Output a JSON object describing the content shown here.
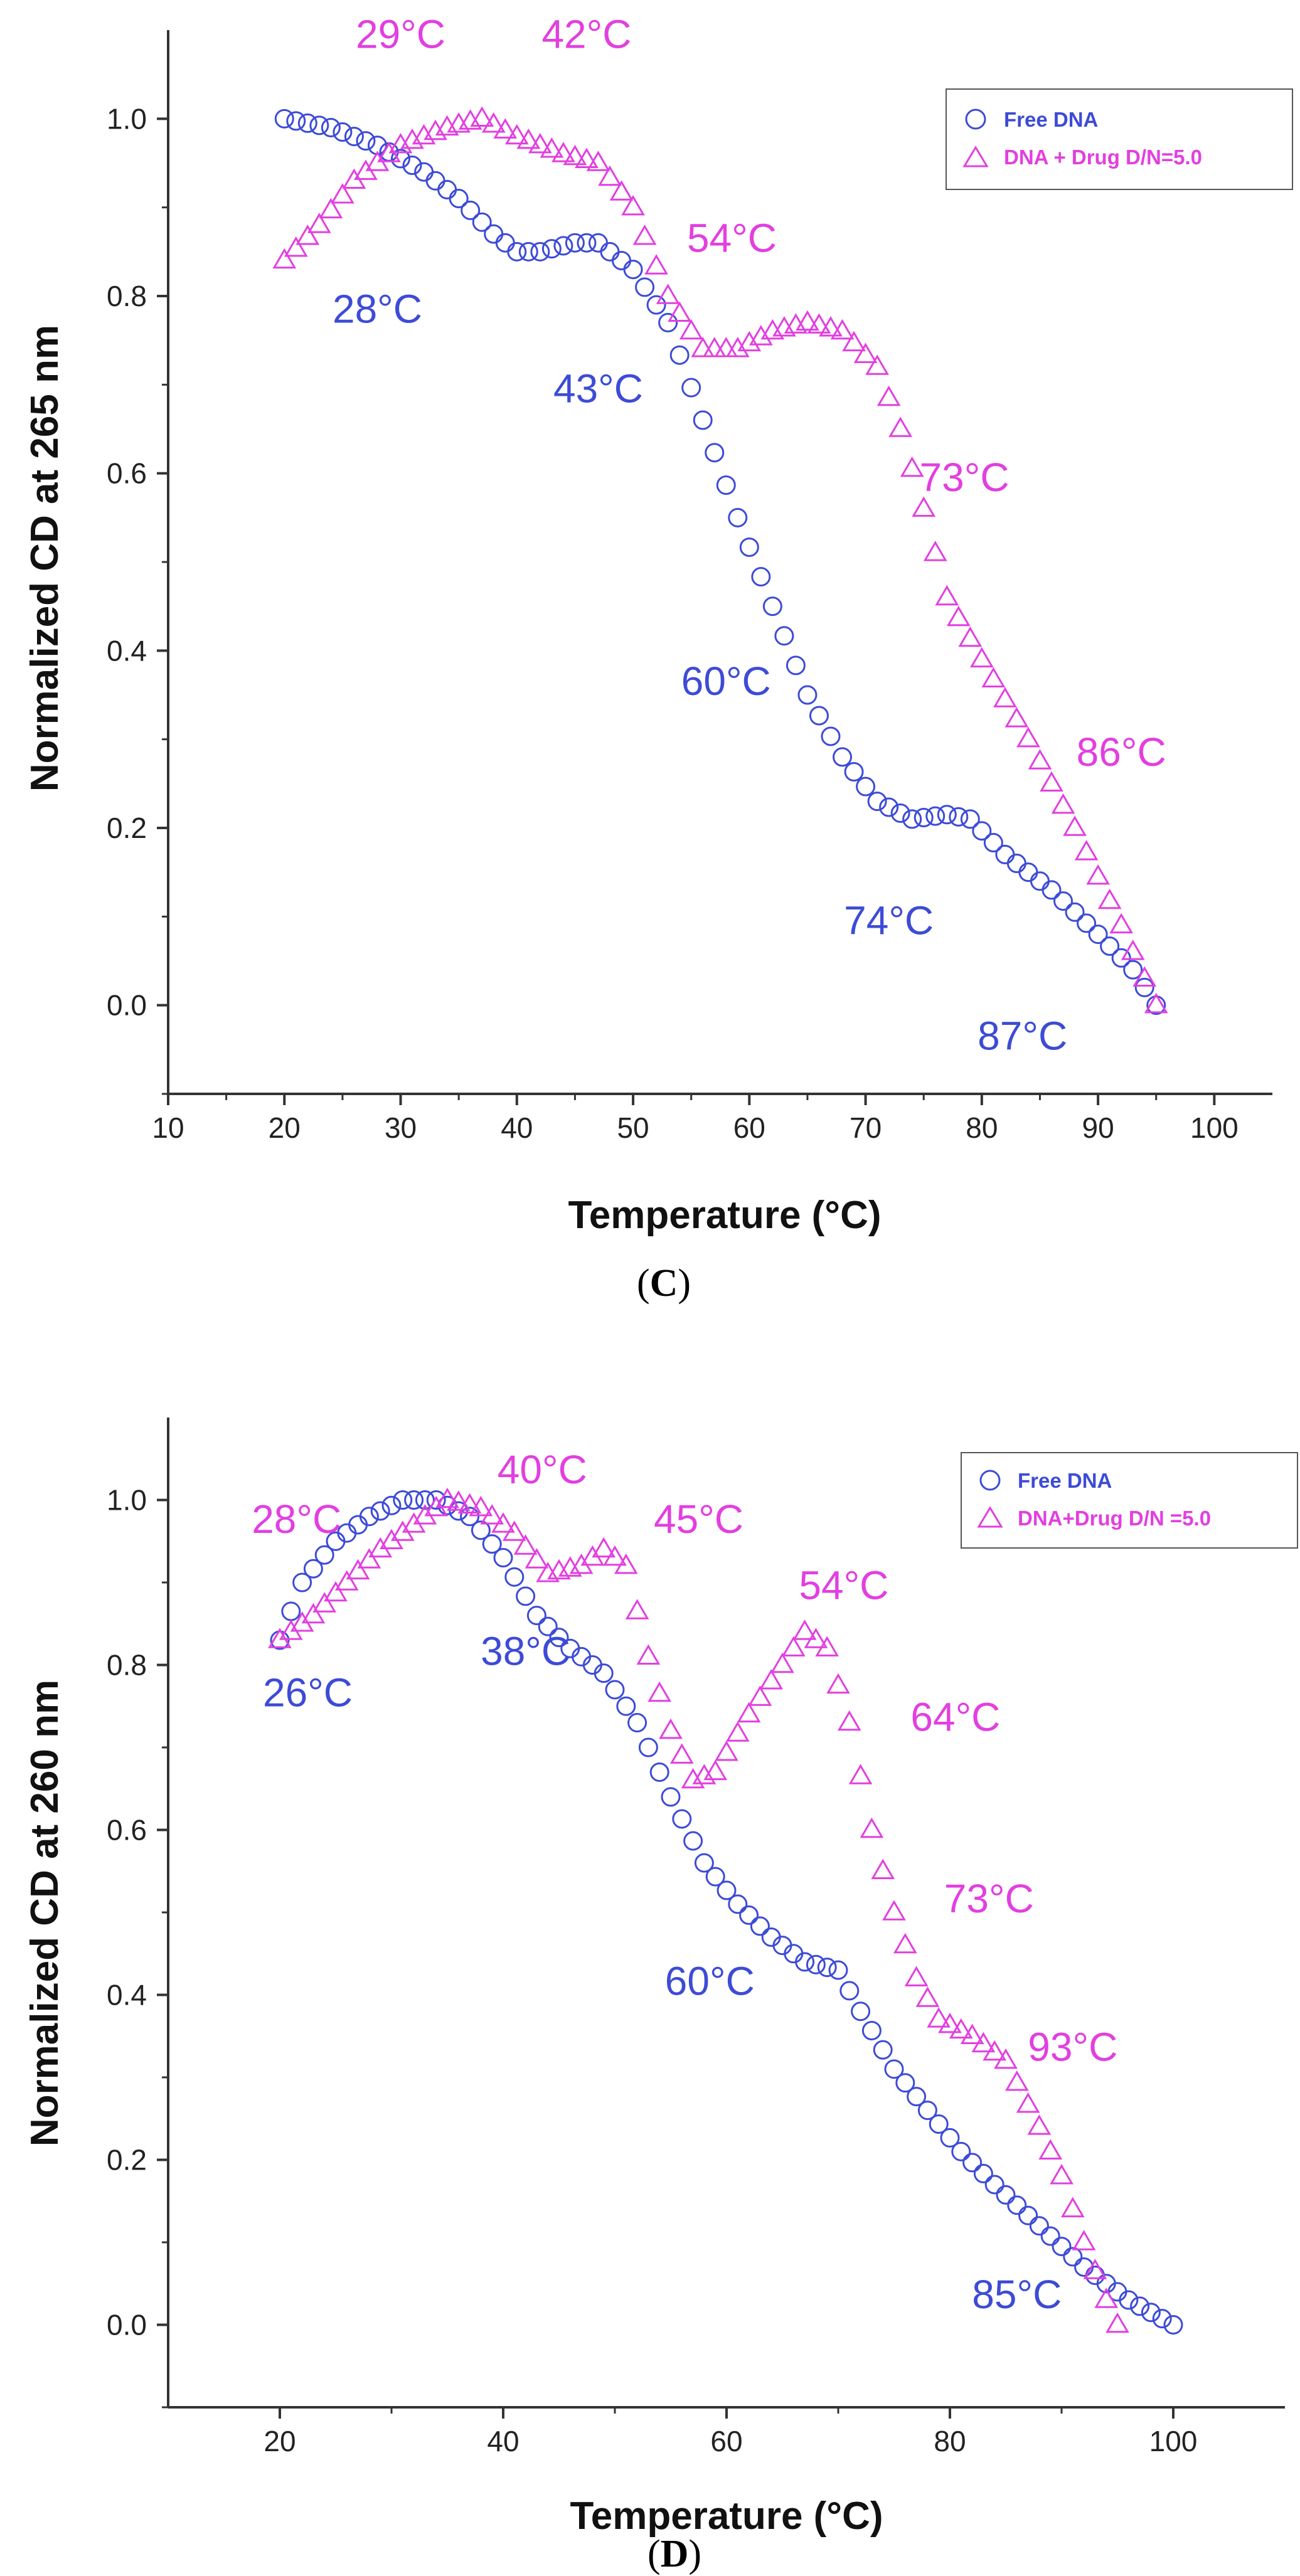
{
  "colors": {
    "free": "#3d4bd6",
    "drug": "#e23fe0",
    "axis": "#333333"
  },
  "chart_data": [
    {
      "panel_label": "C",
      "type": "scatter",
      "xlabel": "Temperature (°C)",
      "ylabel": "Normalized CD at 265 nm",
      "xlim": [
        10,
        105
      ],
      "ylim": [
        -0.1,
        1.1
      ],
      "xticks": [
        10,
        20,
        30,
        40,
        50,
        60,
        70,
        80,
        90,
        100
      ],
      "yticks": [
        0.0,
        0.2,
        0.4,
        0.6,
        0.8,
        1.0
      ],
      "ytick_labels": [
        "0.0",
        "0.2",
        "0.4",
        "0.6",
        "0.8",
        "1.0"
      ],
      "legend": {
        "position": "top-right",
        "entries": [
          "Free DNA",
          "DNA + Drug D/N=5.0"
        ]
      },
      "series": [
        {
          "name": "Free DNA",
          "marker": "circle",
          "x_start": 20,
          "x_end": 95,
          "anchors": [
            [
              20,
              1.0
            ],
            [
              24,
              0.99
            ],
            [
              28,
              0.97
            ],
            [
              32,
              0.94
            ],
            [
              35,
              0.91
            ],
            [
              38,
              0.87
            ],
            [
              40,
              0.85
            ],
            [
              42,
              0.85
            ],
            [
              45,
              0.86
            ],
            [
              47,
              0.86
            ],
            [
              50,
              0.83
            ],
            [
              53,
              0.77
            ],
            [
              56,
              0.66
            ],
            [
              59,
              0.55
            ],
            [
              62,
              0.45
            ],
            [
              65,
              0.35
            ],
            [
              68,
              0.28
            ],
            [
              71,
              0.23
            ],
            [
              74,
              0.21
            ],
            [
              77,
              0.215
            ],
            [
              79,
              0.21
            ],
            [
              82,
              0.17
            ],
            [
              86,
              0.13
            ],
            [
              90,
              0.08
            ],
            [
              93,
              0.04
            ],
            [
              95,
              0.0
            ]
          ]
        },
        {
          "name": "DNA + Drug D/N=5.0",
          "marker": "triangle",
          "x_start": 20,
          "x_end": 95,
          "anchors": [
            [
              20,
              0.84
            ],
            [
              23,
              0.88
            ],
            [
              26,
              0.93
            ],
            [
              30,
              0.97
            ],
            [
              34,
              0.99
            ],
            [
              37,
              1.0
            ],
            [
              40,
              0.98
            ],
            [
              44,
              0.96
            ],
            [
              47,
              0.95
            ],
            [
              50,
              0.9
            ],
            [
              53,
              0.8
            ],
            [
              56,
              0.74
            ],
            [
              59,
              0.74
            ],
            [
              62,
              0.76
            ],
            [
              65,
              0.77
            ],
            [
              68,
              0.76
            ],
            [
              71,
              0.72
            ],
            [
              73,
              0.65
            ],
            [
              75,
              0.56
            ],
            [
              77,
              0.46
            ],
            [
              80,
              0.39
            ],
            [
              84,
              0.3
            ],
            [
              88,
              0.2
            ],
            [
              92,
              0.09
            ],
            [
              95,
              0.0
            ]
          ]
        }
      ],
      "annotations": [
        {
          "text": "29°C",
          "x": 30,
          "y": 1.08,
          "series": "drug"
        },
        {
          "text": "42°C",
          "x": 46,
          "y": 1.08,
          "series": "drug"
        },
        {
          "text": "54°C",
          "x": 58.5,
          "y": 0.85,
          "series": "drug"
        },
        {
          "text": "73°C",
          "x": 78.5,
          "y": 0.58,
          "series": "drug"
        },
        {
          "text": "86°C",
          "x": 92,
          "y": 0.27,
          "series": "drug"
        },
        {
          "text": "28°C",
          "x": 28,
          "y": 0.77,
          "series": "free"
        },
        {
          "text": "43°C",
          "x": 47,
          "y": 0.68,
          "series": "free"
        },
        {
          "text": "60°C",
          "x": 58,
          "y": 0.35,
          "series": "free"
        },
        {
          "text": "74°C",
          "x": 72,
          "y": 0.08,
          "series": "free"
        },
        {
          "text": "87°C",
          "x": 83.5,
          "y": -0.05,
          "series": "free"
        }
      ]
    },
    {
      "panel_label": "D",
      "type": "scatter",
      "xlabel": "Temperature (°C)",
      "ylabel": "Normalized CD at 260 nm",
      "xlim": [
        10,
        110
      ],
      "ylim": [
        -0.1,
        1.1
      ],
      "xticks": [
        20,
        40,
        60,
        80,
        100
      ],
      "yticks": [
        0.0,
        0.2,
        0.4,
        0.6,
        0.8,
        1.0
      ],
      "ytick_labels": [
        "0.0",
        "0.2",
        "0.4",
        "0.6",
        "0.8",
        "1.0"
      ],
      "legend": {
        "position": "top-right",
        "entries": [
          "Free DNA",
          "DNA+Drug D/N =5.0"
        ]
      },
      "series": [
        {
          "name": "Free DNA",
          "marker": "circle",
          "x_start": 20,
          "x_end": 100,
          "anchors": [
            [
              20,
              0.83
            ],
            [
              22,
              0.9
            ],
            [
              25,
              0.95
            ],
            [
              28,
              0.98
            ],
            [
              31,
              1.0
            ],
            [
              34,
              1.0
            ],
            [
              37,
              0.98
            ],
            [
              40,
              0.93
            ],
            [
              43,
              0.86
            ],
            [
              46,
              0.82
            ],
            [
              49,
              0.79
            ],
            [
              52,
              0.73
            ],
            [
              55,
              0.64
            ],
            [
              58,
              0.56
            ],
            [
              61,
              0.51
            ],
            [
              64,
              0.47
            ],
            [
              67,
              0.44
            ],
            [
              70,
              0.43
            ],
            [
              72,
              0.38
            ],
            [
              75,
              0.31
            ],
            [
              78,
              0.26
            ],
            [
              81,
              0.21
            ],
            [
              84,
              0.17
            ],
            [
              88,
              0.12
            ],
            [
              92,
              0.07
            ],
            [
              96,
              0.03
            ],
            [
              100,
              0.0
            ]
          ]
        },
        {
          "name": "DNA+Drug D/N =5.0",
          "marker": "triangle",
          "x_start": 20,
          "x_end": 95,
          "anchors": [
            [
              20,
              0.83
            ],
            [
              23,
              0.86
            ],
            [
              26,
              0.9
            ],
            [
              29,
              0.94
            ],
            [
              32,
              0.97
            ],
            [
              35,
              1.0
            ],
            [
              38,
              0.99
            ],
            [
              41,
              0.96
            ],
            [
              44,
              0.91
            ],
            [
              47,
              0.92
            ],
            [
              49,
              0.94
            ],
            [
              51,
              0.92
            ],
            [
              53,
              0.81
            ],
            [
              55,
              0.72
            ],
            [
              57,
              0.66
            ],
            [
              59,
              0.67
            ],
            [
              62,
              0.74
            ],
            [
              65,
              0.8
            ],
            [
              67,
              0.84
            ],
            [
              69,
              0.82
            ],
            [
              71,
              0.73
            ],
            [
              73,
              0.6
            ],
            [
              75,
              0.5
            ],
            [
              77,
              0.42
            ],
            [
              79,
              0.37
            ],
            [
              82,
              0.35
            ],
            [
              85,
              0.32
            ],
            [
              88,
              0.24
            ],
            [
              90,
              0.18
            ],
            [
              92,
              0.1
            ],
            [
              94,
              0.03
            ],
            [
              95,
              0.0
            ]
          ]
        }
      ],
      "annotations": [
        {
          "text": "28°C",
          "x": 21.5,
          "y": 0.96,
          "series": "drug"
        },
        {
          "text": "40°C",
          "x": 43.5,
          "y": 1.02,
          "series": "drug"
        },
        {
          "text": "45°C",
          "x": 57.5,
          "y": 0.96,
          "series": "drug"
        },
        {
          "text": "54°C",
          "x": 70.5,
          "y": 0.88,
          "series": "drug"
        },
        {
          "text": "64°C",
          "x": 80.5,
          "y": 0.72,
          "series": "drug"
        },
        {
          "text": "73°C",
          "x": 83.5,
          "y": 0.5,
          "series": "drug"
        },
        {
          "text": "93°C",
          "x": 91,
          "y": 0.32,
          "series": "drug"
        },
        {
          "text": "26°C",
          "x": 22.5,
          "y": 0.75,
          "series": "free"
        },
        {
          "text": "38°C",
          "x": 42,
          "y": 0.8,
          "series": "free"
        },
        {
          "text": "60°C",
          "x": 58.5,
          "y": 0.4,
          "series": "free"
        },
        {
          "text": "85°C",
          "x": 86,
          "y": 0.02,
          "series": "free"
        }
      ]
    }
  ]
}
